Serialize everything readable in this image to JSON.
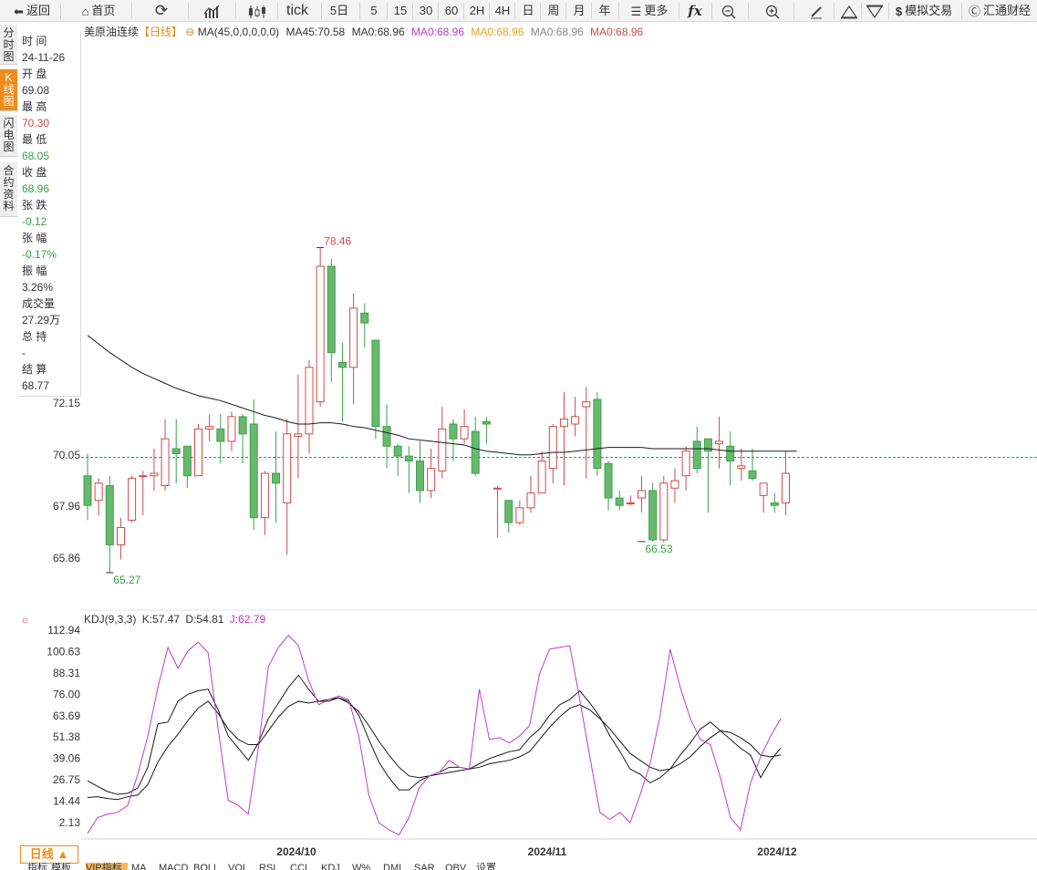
{
  "toolbar": {
    "back": "返回",
    "home": "首页",
    "tick": "tick",
    "d5": "5日",
    "m5": "5",
    "m15": "15",
    "m30": "30",
    "m60": "60",
    "h2": "2H",
    "h4": "4H",
    "day": "日",
    "week": "周",
    "month": "月",
    "year": "年",
    "more": "更多",
    "fx": "fx",
    "sim_trade": "模拟交易",
    "brand": "汇通财经"
  },
  "side_tabs": [
    {
      "label": "分时图"
    },
    {
      "label": "K线图"
    },
    {
      "label": "闪电图"
    },
    {
      "label": "合约资料"
    }
  ],
  "info": {
    "time_label": "时 间",
    "time": "24-11-26",
    "open_label": "开 盘",
    "open": "69.08",
    "high_label": "最 高",
    "high": "70.30",
    "low_label": "最 低",
    "low": "68.05",
    "close_label": "收 盘",
    "close": "68.96",
    "change_label": "张 跌",
    "change": "-0.12",
    "pct_label": "张 幅",
    "pct": "-0.17%",
    "amp_label": "振 幅",
    "amp": "3.26%",
    "vol_label": "成交量",
    "vol": "27.29万",
    "oi_label": "总 持",
    "oi": "-",
    "settle_label": "结 算",
    "settle": "68.77"
  },
  "legend": {
    "name": "美原油连续",
    "period": "【日线】",
    "ma_params": "MA(45,0,0,0,0,0)",
    "ma45": "MA45:70.58",
    "ma0_a": "MA0:68.96",
    "ma0_b": "MA0:68.96",
    "ma0_c": "MA0:68.96",
    "ma0_d": "MA0:68.96",
    "ma0_e": "MA0:68.96"
  },
  "kdj_legend": {
    "params": "KDJ(9,3,3)",
    "k": "K:57.47",
    "d": "D:54.81",
    "j": "J:62.79"
  },
  "bottom": {
    "period_label": "日线 ▲",
    "tabs": [
      "指标",
      "模板",
      "VIP指标",
      "MA",
      "MACD",
      "BOLL",
      "VOL",
      "RSI",
      "CCI",
      "KDJ",
      "W%",
      "DMI",
      "SAR",
      "OBV",
      "设置"
    ]
  },
  "colors": {
    "up": "#d04a4a",
    "down": "#3aa14a",
    "up_fill": "#ffffff",
    "down_fill": "#6ab86f",
    "ma45": "#1a1a1a",
    "k_line": "#1a1a1a",
    "d_line": "#1a1a1a",
    "j_line": "#c03cc8",
    "last_price": "#1a9aa8",
    "legend_ma0_a": "#c03cc8",
    "legend_ma0_b": "#e8a020",
    "legend_ma0_c": "#888888",
    "legend_ma0_d": "#c05050"
  },
  "chart_data": [
    {
      "type": "candlestick",
      "title": "美原油连续【日线】",
      "y_ticks": [
        72.15,
        70.05,
        67.96,
        65.86
      ],
      "ylim": [
        64.5,
        80.0
      ],
      "x_tick_labels": [
        "2024/10",
        "2024/11",
        "2024/12"
      ],
      "last_price": 69.95,
      "annotations": [
        {
          "text": "78.46",
          "value": 78.46,
          "index": 21,
          "kind": "high"
        },
        {
          "text": "65.27",
          "value": 65.27,
          "index": 2,
          "kind": "low"
        },
        {
          "text": "66.53",
          "value": 66.53,
          "index": 50,
          "kind": "low"
        }
      ],
      "candles": [
        [
          69.2,
          68.0,
          70.1,
          67.4
        ],
        [
          68.2,
          68.9,
          69.1,
          67.6
        ],
        [
          68.8,
          66.4,
          69.2,
          65.27
        ],
        [
          66.4,
          67.1,
          67.5,
          65.8
        ],
        [
          67.4,
          69.1,
          69.2,
          67.3
        ],
        [
          69.2,
          69.2,
          69.4,
          67.6
        ],
        [
          69.2,
          69.3,
          70.3,
          68.6
        ],
        [
          68.8,
          70.7,
          71.5,
          68.6
        ],
        [
          70.3,
          70.1,
          71.5,
          68.9
        ],
        [
          70.4,
          69.2,
          70.4,
          68.7
        ],
        [
          69.2,
          71.1,
          71.3,
          69.2
        ],
        [
          71.1,
          71.2,
          71.7,
          70.6
        ],
        [
          71.1,
          70.6,
          71.7,
          69.7
        ],
        [
          70.6,
          71.6,
          71.8,
          70.2
        ],
        [
          71.6,
          70.9,
          71.7,
          69.7
        ],
        [
          71.3,
          67.5,
          72.3,
          67.0
        ],
        [
          67.5,
          69.3,
          69.4,
          66.8
        ],
        [
          69.3,
          68.9,
          71.0,
          67.3
        ],
        [
          68.1,
          70.9,
          71.5,
          66.0
        ],
        [
          70.8,
          70.9,
          73.3,
          69.1
        ],
        [
          70.9,
          73.6,
          73.9,
          70.1
        ],
        [
          72.2,
          77.7,
          78.46,
          72.0
        ],
        [
          77.7,
          74.2,
          78.0,
          73.0
        ],
        [
          73.8,
          73.6,
          74.6,
          71.4
        ],
        [
          73.6,
          76.0,
          76.6,
          72.1
        ],
        [
          75.8,
          75.4,
          76.2,
          74.4
        ],
        [
          74.7,
          71.2,
          74.7,
          70.7
        ],
        [
          71.2,
          70.4,
          72.1,
          69.5
        ],
        [
          70.4,
          70.0,
          70.5,
          69.2
        ],
        [
          70.0,
          69.8,
          70.4,
          68.5
        ],
        [
          69.8,
          68.6,
          70.6,
          68.1
        ],
        [
          68.6,
          69.5,
          70.3,
          68.3
        ],
        [
          69.4,
          71.1,
          72.0,
          69.1
        ],
        [
          71.3,
          70.7,
          71.5,
          69.8
        ],
        [
          70.7,
          71.2,
          71.9,
          70.5
        ],
        [
          71.0,
          69.3,
          71.6,
          69.2
        ],
        [
          71.4,
          71.3,
          71.6,
          70.5
        ],
        [
          68.7,
          68.7,
          68.8,
          66.7
        ],
        [
          68.2,
          67.3,
          68.2,
          66.9
        ],
        [
          67.3,
          67.9,
          68.2,
          67.2
        ],
        [
          67.9,
          68.5,
          69.2,
          67.7
        ],
        [
          68.5,
          69.8,
          70.2,
          68.7
        ],
        [
          69.5,
          71.2,
          71.3,
          68.9
        ],
        [
          71.2,
          71.5,
          72.6,
          68.8
        ],
        [
          71.3,
          71.6,
          72.4,
          70.8
        ],
        [
          72.0,
          72.2,
          72.8,
          69.1
        ],
        [
          72.3,
          69.5,
          72.6,
          69.2
        ],
        [
          69.7,
          68.3,
          69.8,
          67.8
        ],
        [
          68.3,
          68.0,
          68.6,
          67.8
        ],
        [
          68.1,
          68.1,
          68.4,
          68.0
        ],
        [
          68.3,
          68.6,
          69.2,
          67.7
        ],
        [
          68.6,
          66.6,
          68.9,
          66.53
        ],
        [
          66.6,
          68.9,
          69.2,
          66.5
        ],
        [
          68.7,
          69.0,
          69.5,
          68.1
        ],
        [
          69.2,
          70.2,
          70.4,
          68.6
        ],
        [
          70.6,
          69.5,
          71.2,
          69.3
        ],
        [
          70.7,
          70.2,
          70.7,
          67.7
        ],
        [
          70.5,
          70.6,
          71.6,
          69.5
        ],
        [
          70.4,
          69.8,
          71.0,
          68.8
        ],
        [
          69.5,
          69.6,
          70.3,
          69.0
        ],
        [
          69.4,
          69.1,
          70.3,
          69.0
        ],
        [
          68.4,
          68.9,
          68.9,
          67.7
        ],
        [
          68.1,
          68.0,
          68.5,
          67.7
        ],
        [
          68.1,
          69.3,
          70.2,
          67.6
        ]
      ],
      "ma45": [
        [
          0,
          74.9
        ],
        [
          1,
          74.55
        ],
        [
          2,
          74.2
        ],
        [
          3,
          73.9
        ],
        [
          4,
          73.6
        ],
        [
          5,
          73.35
        ],
        [
          6,
          73.15
        ],
        [
          7,
          72.95
        ],
        [
          8,
          72.75
        ],
        [
          9,
          72.6
        ],
        [
          10,
          72.45
        ],
        [
          11,
          72.35
        ],
        [
          12,
          72.25
        ],
        [
          13,
          72.1
        ],
        [
          14,
          71.95
        ],
        [
          15,
          71.8
        ],
        [
          16,
          71.65
        ],
        [
          17,
          71.55
        ],
        [
          18,
          71.4
        ],
        [
          19,
          71.3
        ],
        [
          20,
          71.3
        ],
        [
          21,
          71.35
        ],
        [
          22,
          71.35
        ],
        [
          23,
          71.3
        ],
        [
          24,
          71.2
        ],
        [
          25,
          71.15
        ],
        [
          26,
          71.05
        ],
        [
          27,
          70.95
        ],
        [
          28,
          70.85
        ],
        [
          29,
          70.7
        ],
        [
          30,
          70.65
        ],
        [
          31,
          70.6
        ],
        [
          32,
          70.55
        ],
        [
          33,
          70.5
        ],
        [
          34,
          70.45
        ],
        [
          35,
          70.3
        ],
        [
          36,
          70.2
        ],
        [
          37,
          70.15
        ],
        [
          38,
          70.1
        ],
        [
          39,
          70.05
        ],
        [
          40,
          70.05
        ],
        [
          41,
          70.1
        ],
        [
          42,
          70.15
        ],
        [
          43,
          70.15
        ],
        [
          44,
          70.2
        ],
        [
          45,
          70.25
        ],
        [
          46,
          70.3
        ],
        [
          47,
          70.35
        ],
        [
          48,
          70.35
        ],
        [
          49,
          70.35
        ],
        [
          50,
          70.35
        ],
        [
          51,
          70.3
        ],
        [
          52,
          70.3
        ],
        [
          53,
          70.3
        ],
        [
          54,
          70.3
        ],
        [
          55,
          70.3
        ],
        [
          56,
          70.3
        ],
        [
          57,
          70.25
        ],
        [
          58,
          70.2
        ],
        [
          59,
          70.2
        ],
        [
          60,
          70.2
        ],
        [
          61,
          70.2
        ],
        [
          62,
          70.2
        ],
        [
          63,
          70.2
        ],
        [
          64,
          70.2
        ]
      ]
    },
    {
      "type": "line",
      "title": "KDJ(9,3,3)",
      "y_ticks": [
        112.94,
        100.63,
        88.31,
        76.0,
        63.69,
        51.38,
        39.06,
        26.75,
        14.44,
        2.13
      ],
      "ylim": [
        -10,
        116
      ],
      "series": [
        {
          "name": "K",
          "values": [
            26.2,
            23,
            20,
            18.4,
            19,
            22,
            34,
            59,
            60,
            72,
            76,
            78,
            79,
            67,
            52,
            45,
            38,
            48,
            62,
            71,
            80,
            87,
            79,
            72,
            72,
            74,
            72,
            64,
            50,
            37,
            28,
            21,
            21,
            26,
            29,
            31,
            34,
            34,
            33,
            36,
            39,
            41,
            43,
            44,
            51,
            56,
            64,
            70,
            73,
            78,
            71,
            63,
            52,
            43,
            33,
            30,
            25,
            28,
            33,
            41,
            48,
            56,
            60,
            55,
            50,
            45,
            41,
            28,
            38,
            45
          ]
        },
        {
          "name": "D",
          "values": [
            16.6,
            17,
            16,
            15.4,
            17,
            18,
            24,
            37,
            46,
            53,
            61,
            68,
            72,
            65,
            56,
            50,
            47,
            47,
            55,
            63,
            69,
            72,
            71,
            72,
            73,
            74,
            71,
            66,
            58,
            49,
            41,
            34,
            29,
            28,
            29,
            30,
            31,
            32,
            33,
            34,
            36,
            37,
            38,
            40,
            43,
            50,
            57,
            63,
            68,
            70,
            67,
            62,
            56,
            49,
            42,
            38,
            34,
            32,
            33,
            36,
            40,
            46,
            51,
            55,
            54,
            51,
            47,
            41,
            40,
            41
          ]
        },
        {
          "name": "J",
          "values": [
            -4,
            5,
            7,
            8,
            12,
            30,
            52,
            80,
            103,
            91,
            101,
            106,
            100,
            56,
            15,
            12,
            7,
            45,
            92,
            103,
            110,
            104,
            84,
            70,
            73,
            75,
            73,
            52,
            18,
            2,
            -2,
            -5,
            5,
            22,
            29,
            31,
            38,
            34,
            33,
            79,
            50,
            51,
            48,
            52,
            58,
            88,
            102,
            103,
            104,
            73,
            40,
            8,
            4,
            8,
            2,
            18,
            36,
            64,
            102,
            80,
            62,
            50,
            47,
            28,
            5,
            -2,
            25,
            40,
            52,
            62
          ]
        }
      ],
      "x_tick_labels": [
        "2024/10",
        "2024/11",
        "2024/12"
      ]
    }
  ]
}
